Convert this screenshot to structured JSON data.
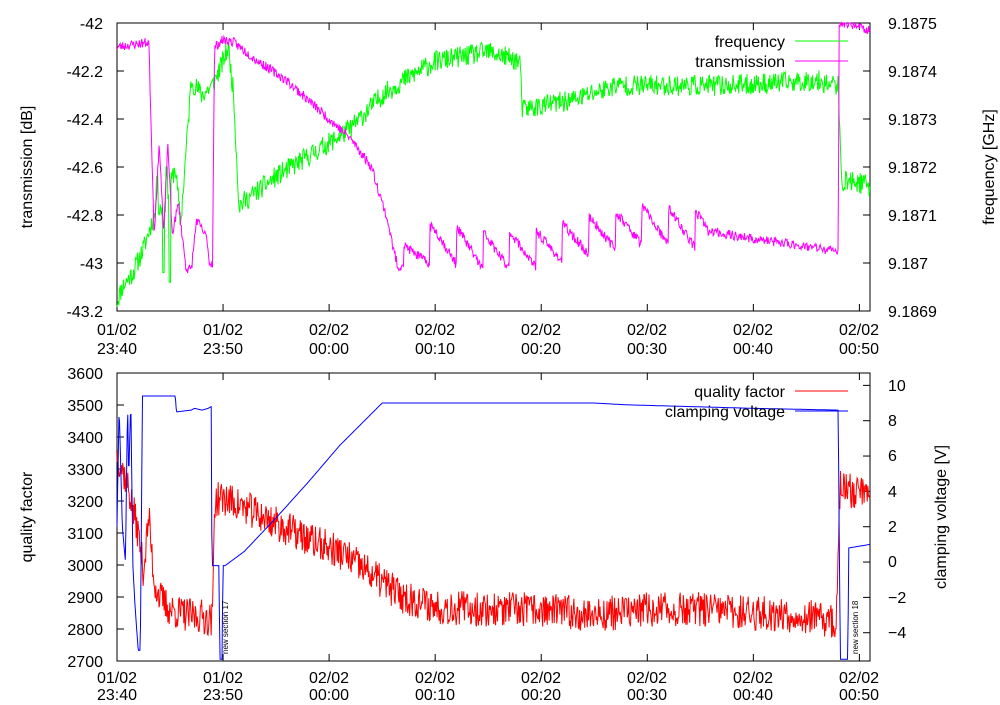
{
  "chart_data": [
    {
      "type": "line",
      "name": "top-panel",
      "x_tick_labels": [
        {
          "date": "01/02",
          "time": "23:40"
        },
        {
          "date": "01/02",
          "time": "23:50"
        },
        {
          "date": "02/02",
          "time": "00:00"
        },
        {
          "date": "02/02",
          "time": "00:10"
        },
        {
          "date": "02/02",
          "time": "00:20"
        },
        {
          "date": "02/02",
          "time": "00:30"
        },
        {
          "date": "02/02",
          "time": "00:40"
        },
        {
          "date": "02/02",
          "time": "00:50"
        }
      ],
      "x_range_minutes": [
        0,
        71
      ],
      "y_left": {
        "label": "transmission [dB]",
        "range": [
          -43.2,
          -42.0
        ],
        "ticks": [
          "-42",
          "-42.2",
          "-42.4",
          "-42.6",
          "-42.8",
          "-43",
          "-43.2"
        ],
        "tick_values": [
          -42,
          -42.2,
          -42.4,
          -42.6,
          -42.8,
          -43,
          -43.2
        ]
      },
      "y_right": {
        "label": "frequency [GHz]",
        "range": [
          9.1869,
          9.1875
        ],
        "ticks": [
          "9.1875",
          "9.1874",
          "9.1873",
          "9.1872",
          "9.1871",
          "9.187",
          "9.1869"
        ],
        "tick_values": [
          9.1875,
          9.1874,
          9.1873,
          9.1872,
          9.1871,
          9.187,
          9.1869
        ]
      },
      "legend": [
        {
          "label": "frequency",
          "color": "#00ff00"
        },
        {
          "label": "transmission",
          "color": "#ff00ff"
        }
      ],
      "series": [
        {
          "name": "frequency",
          "axis": "right",
          "color": "#00ff00",
          "noise": 2.2e-05,
          "points": [
            [
              0,
              9.18692
            ],
            [
              0.5,
              9.18695
            ],
            [
              1.5,
              9.18698
            ],
            [
              2.5,
              9.18703
            ],
            [
              3.5,
              9.1871
            ],
            [
              4.5,
              9.18712
            ],
            [
              5.5,
              9.1872
            ],
            [
              6,
              9.18708
            ],
            [
              7,
              9.18738
            ],
            [
              8,
              9.18735
            ],
            [
              9,
              9.18737
            ],
            [
              10,
              9.18742
            ],
            [
              10.5,
              9.18745
            ],
            [
              11,
              9.18735
            ],
            [
              11.5,
              9.18712
            ],
            [
              15,
              9.18718
            ],
            [
              20,
              9.18725
            ],
            [
              22,
              9.18728
            ],
            [
              25,
              9.18735
            ],
            [
              27,
              9.18738
            ],
            [
              30,
              9.18742
            ],
            [
              35,
              9.18744
            ],
            [
              38,
              9.18742
            ],
            [
              38.2,
              9.18732
            ],
            [
              43,
              9.18734
            ],
            [
              47,
              9.18737
            ],
            [
              52,
              9.18737
            ],
            [
              58,
              9.18737
            ],
            [
              66,
              9.18738
            ],
            [
              68,
              9.18737
            ],
            [
              68.3,
              9.18717
            ],
            [
              69.5,
              9.18717
            ],
            [
              71,
              9.18716
            ]
          ],
          "spikes": [
            {
              "x": 3.8,
              "y": 9.18718
            },
            {
              "x": 4.4,
              "y": 9.18698
            },
            {
              "x": 4.7,
              "y": 9.1872
            },
            {
              "x": 5.0,
              "y": 9.18696
            }
          ]
        },
        {
          "name": "transmission",
          "axis": "left",
          "color": "#ff00ff",
          "noise": 0.02,
          "points": [
            [
              0,
              -42.1
            ],
            [
              3,
              -42.08
            ],
            [
              3.5,
              -42.88
            ],
            [
              4,
              -42.5
            ],
            [
              4.4,
              -42.88
            ],
            [
              4.8,
              -42.5
            ],
            [
              5.2,
              -42.88
            ],
            [
              5.8,
              -42.75
            ],
            [
              6.5,
              -43.02
            ],
            [
              7,
              -43.03
            ],
            [
              7.5,
              -42.82
            ],
            [
              8.5,
              -42.9
            ],
            [
              8.7,
              -43.0
            ],
            [
              9,
              -43.0
            ],
            [
              9.2,
              -42.1
            ],
            [
              10,
              -42.07
            ],
            [
              11,
              -42.08
            ],
            [
              13,
              -42.15
            ],
            [
              16,
              -42.24
            ],
            [
              19,
              -42.36
            ],
            [
              22,
              -42.48
            ],
            [
              24,
              -42.6
            ],
            [
              25.5,
              -42.82
            ],
            [
              26,
              -42.93
            ],
            [
              26.5,
              -43.02
            ],
            [
              30,
              -42.91
            ],
            [
              35,
              -42.95
            ],
            [
              40,
              -42.94
            ],
            [
              45,
              -42.88
            ],
            [
              50,
              -42.84
            ],
            [
              55,
              -42.86
            ],
            [
              60,
              -42.9
            ],
            [
              65,
              -42.93
            ],
            [
              67.5,
              -42.95
            ],
            [
              68,
              -42.95
            ],
            [
              68.1,
              -42.0
            ],
            [
              69,
              -42.0
            ],
            [
              71,
              -42.03
            ]
          ],
          "teeth": {
            "from": 27,
            "to": 56,
            "period": 2.5,
            "amplitude": 0.16
          }
        }
      ]
    },
    {
      "type": "line",
      "name": "bottom-panel",
      "x_tick_labels": [
        {
          "date": "01/02",
          "time": "23:40"
        },
        {
          "date": "01/02",
          "time": "23:50"
        },
        {
          "date": "02/02",
          "time": "00:00"
        },
        {
          "date": "02/02",
          "time": "00:10"
        },
        {
          "date": "02/02",
          "time": "00:20"
        },
        {
          "date": "02/02",
          "time": "00:30"
        },
        {
          "date": "02/02",
          "time": "00:40"
        },
        {
          "date": "02/02",
          "time": "00:50"
        }
      ],
      "x_range_minutes": [
        0,
        71
      ],
      "y_left": {
        "label": "quality factor",
        "range": [
          2700,
          3600
        ],
        "ticks": [
          "3600",
          "3500",
          "3400",
          "3300",
          "3200",
          "3100",
          "3000",
          "2900",
          "2800",
          "2700"
        ],
        "tick_values": [
          3600,
          3500,
          3400,
          3300,
          3200,
          3100,
          3000,
          2900,
          2800,
          2700
        ]
      },
      "y_right": {
        "label": "clamping voltage [V]",
        "range": [
          -5.6,
          10.7
        ],
        "ticks": [
          "10",
          "8",
          "6",
          "4",
          "2",
          "0",
          "−2",
          "−4"
        ],
        "tick_values": [
          10,
          8,
          6,
          4,
          2,
          0,
          -2,
          -4
        ]
      },
      "legend": [
        {
          "label": "quality factor",
          "color": "#ff0000"
        },
        {
          "label": "clamping voltage",
          "color": "#0000ff"
        }
      ],
      "annotations": [
        {
          "text": "new section 17",
          "x": 9.7
        },
        {
          "text": "new section 18",
          "x": 68.3
        }
      ],
      "series": [
        {
          "name": "quality factor",
          "axis": "left",
          "color": "#ff0000",
          "noise": 55,
          "points": [
            [
              0,
              3350
            ],
            [
              1,
              3250
            ],
            [
              2,
              3100
            ],
            [
              2.5,
              2980
            ],
            [
              3,
              3150
            ],
            [
              3.5,
              2950
            ],
            [
              4,
              2900
            ],
            [
              5,
              2860
            ],
            [
              6,
              2850
            ],
            [
              7,
              2840
            ],
            [
              8,
              2840
            ],
            [
              8.8,
              2830
            ],
            [
              9,
              2830
            ],
            [
              9.2,
              3200
            ],
            [
              10,
              3210
            ],
            [
              12,
              3180
            ],
            [
              15,
              3130
            ],
            [
              18,
              3080
            ],
            [
              21,
              3040
            ],
            [
              24,
              2970
            ],
            [
              27,
              2900
            ],
            [
              30,
              2870
            ],
            [
              35,
              2860
            ],
            [
              40,
              2860
            ],
            [
              45,
              2845
            ],
            [
              50,
              2860
            ],
            [
              55,
              2860
            ],
            [
              60,
              2850
            ],
            [
              65,
              2840
            ],
            [
              67.8,
              2820
            ],
            [
              68.2,
              3240
            ],
            [
              69,
              3230
            ],
            [
              71,
              3240
            ]
          ]
        },
        {
          "name": "clamping voltage",
          "axis": "right",
          "color": "#0000ff",
          "noise": 0,
          "points": [
            [
              0,
              2
            ],
            [
              0.2,
              8.9
            ],
            [
              0.5,
              2
            ],
            [
              0.8,
              0
            ],
            [
              1,
              9.3
            ],
            [
              1.1,
              4.5
            ],
            [
              1.3,
              9.3
            ],
            [
              1.5,
              -0.2
            ],
            [
              1.7,
              -2.5
            ],
            [
              2,
              -5
            ],
            [
              2.2,
              -5
            ],
            [
              2.4,
              9.4
            ],
            [
              5.5,
              9.4
            ],
            [
              5.6,
              8.5
            ],
            [
              7,
              8.6
            ],
            [
              7.3,
              8.7
            ],
            [
              8,
              8.6
            ],
            [
              8.6,
              8.7
            ],
            [
              8.9,
              8.8
            ],
            [
              8.95,
              -0.2
            ],
            [
              9.6,
              -0.2
            ],
            [
              9.7,
              -5.5
            ],
            [
              9.9,
              -5.5
            ],
            [
              10,
              -0.2
            ],
            [
              10.2,
              -0.2
            ],
            [
              12,
              0.6
            ],
            [
              15,
              2.5
            ],
            [
              18,
              4.5
            ],
            [
              21,
              6.6
            ],
            [
              23,
              7.8
            ],
            [
              25,
              9.0
            ],
            [
              30,
              9.0
            ],
            [
              35,
              9.0
            ],
            [
              45,
              9.0
            ],
            [
              48,
              8.9
            ],
            [
              60,
              8.7
            ],
            [
              68,
              8.6
            ],
            [
              68.2,
              -5.5
            ],
            [
              68.9,
              -5.5
            ],
            [
              69,
              0.8
            ],
            [
              71,
              1
            ]
          ]
        }
      ]
    }
  ]
}
